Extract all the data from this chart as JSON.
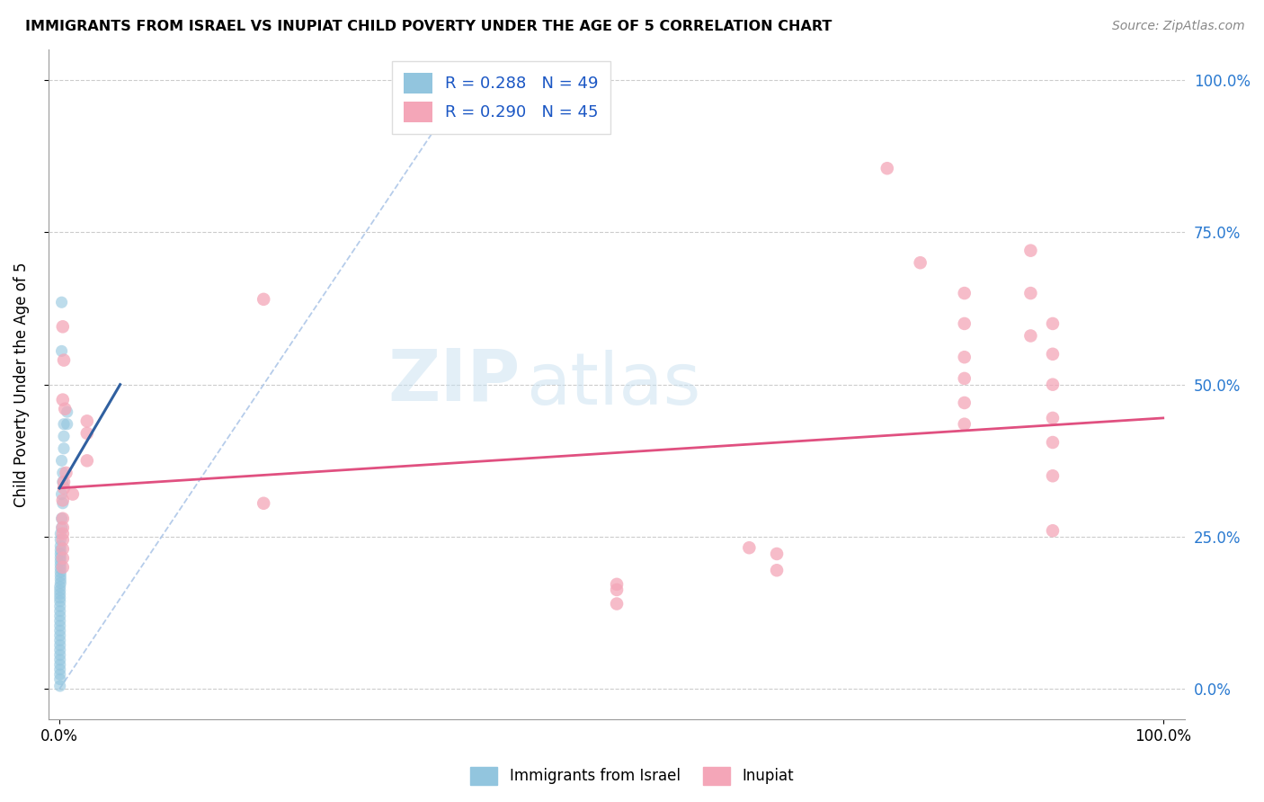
{
  "title": "IMMIGRANTS FROM ISRAEL VS INUPIAT CHILD POVERTY UNDER THE AGE OF 5 CORRELATION CHART",
  "source": "Source: ZipAtlas.com",
  "ylabel": "Child Poverty Under the Age of 5",
  "xlim": [
    -0.01,
    1.02
  ],
  "ylim": [
    -0.05,
    1.05
  ],
  "xtick_positions": [
    0.0,
    1.0
  ],
  "xtick_labels": [
    "0.0%",
    "100.0%"
  ],
  "ytick_positions": [
    0.0,
    0.25,
    0.5,
    0.75,
    1.0
  ],
  "ytick_labels": [
    "0.0%",
    "25.0%",
    "50.0%",
    "75.0%",
    "100.0%"
  ],
  "legend_r1": "R = 0.288",
  "legend_n1": "N = 49",
  "legend_r2": "R = 0.290",
  "legend_n2": "N = 45",
  "legend_label1": "Immigrants from Israel",
  "legend_label2": "Inupiat",
  "color_blue": "#92c5de",
  "color_pink": "#f4a6b8",
  "color_line_blue": "#3060a0",
  "color_line_pink": "#e05080",
  "color_diag": "#aec7e8",
  "watermark_zip": "ZIP",
  "watermark_atlas": "atlas",
  "blue_points": [
    [
      0.002,
      0.635
    ],
    [
      0.002,
      0.555
    ],
    [
      0.007,
      0.455
    ],
    [
      0.007,
      0.435
    ],
    [
      0.004,
      0.435
    ],
    [
      0.004,
      0.415
    ],
    [
      0.004,
      0.395
    ],
    [
      0.002,
      0.375
    ],
    [
      0.003,
      0.355
    ],
    [
      0.003,
      0.34
    ],
    [
      0.002,
      0.32
    ],
    [
      0.003,
      0.305
    ],
    [
      0.002,
      0.28
    ],
    [
      0.002,
      0.265
    ],
    [
      0.001,
      0.255
    ],
    [
      0.001,
      0.245
    ],
    [
      0.001,
      0.235
    ],
    [
      0.001,
      0.228
    ],
    [
      0.001,
      0.222
    ],
    [
      0.001,
      0.216
    ],
    [
      0.001,
      0.21
    ],
    [
      0.001,
      0.204
    ],
    [
      0.001,
      0.198
    ],
    [
      0.001,
      0.192
    ],
    [
      0.001,
      0.186
    ],
    [
      0.001,
      0.18
    ],
    [
      0.001,
      0.174
    ],
    [
      0.0005,
      0.168
    ],
    [
      0.0005,
      0.162
    ],
    [
      0.0005,
      0.156
    ],
    [
      0.0005,
      0.15
    ],
    [
      0.0005,
      0.144
    ],
    [
      0.0005,
      0.136
    ],
    [
      0.0005,
      0.128
    ],
    [
      0.0005,
      0.12
    ],
    [
      0.0005,
      0.112
    ],
    [
      0.0005,
      0.104
    ],
    [
      0.0005,
      0.096
    ],
    [
      0.0005,
      0.088
    ],
    [
      0.0005,
      0.08
    ],
    [
      0.0005,
      0.072
    ],
    [
      0.0005,
      0.064
    ],
    [
      0.0005,
      0.056
    ],
    [
      0.0005,
      0.048
    ],
    [
      0.0005,
      0.04
    ],
    [
      0.0005,
      0.032
    ],
    [
      0.0005,
      0.024
    ],
    [
      0.0005,
      0.016
    ],
    [
      0.0005,
      0.005
    ]
  ],
  "pink_points": [
    [
      0.003,
      0.595
    ],
    [
      0.004,
      0.54
    ],
    [
      0.003,
      0.475
    ],
    [
      0.005,
      0.46
    ],
    [
      0.025,
      0.44
    ],
    [
      0.025,
      0.42
    ],
    [
      0.185,
      0.64
    ],
    [
      0.025,
      0.375
    ],
    [
      0.006,
      0.355
    ],
    [
      0.004,
      0.34
    ],
    [
      0.004,
      0.33
    ],
    [
      0.012,
      0.32
    ],
    [
      0.003,
      0.31
    ],
    [
      0.185,
      0.305
    ],
    [
      0.003,
      0.28
    ],
    [
      0.003,
      0.265
    ],
    [
      0.003,
      0.255
    ],
    [
      0.003,
      0.245
    ],
    [
      0.003,
      0.23
    ],
    [
      0.003,
      0.215
    ],
    [
      0.003,
      0.2
    ],
    [
      0.75,
      0.855
    ],
    [
      0.78,
      0.7
    ],
    [
      0.82,
      0.65
    ],
    [
      0.82,
      0.6
    ],
    [
      0.82,
      0.545
    ],
    [
      0.82,
      0.51
    ],
    [
      0.82,
      0.47
    ],
    [
      0.82,
      0.435
    ],
    [
      0.88,
      0.72
    ],
    [
      0.88,
      0.65
    ],
    [
      0.88,
      0.58
    ],
    [
      0.9,
      0.6
    ],
    [
      0.9,
      0.55
    ],
    [
      0.9,
      0.5
    ],
    [
      0.9,
      0.445
    ],
    [
      0.9,
      0.405
    ],
    [
      0.9,
      0.35
    ],
    [
      0.9,
      0.26
    ],
    [
      0.625,
      0.232
    ],
    [
      0.65,
      0.222
    ],
    [
      0.65,
      0.195
    ],
    [
      0.505,
      0.172
    ],
    [
      0.505,
      0.163
    ],
    [
      0.505,
      0.14
    ]
  ],
  "blue_line_x": [
    0.0,
    0.055
  ],
  "blue_line_y": [
    0.33,
    0.5
  ],
  "pink_line_x": [
    0.0,
    1.0
  ],
  "pink_line_y": [
    0.33,
    0.445
  ],
  "diag_line_x": [
    0.0,
    0.37
  ],
  "diag_line_y": [
    0.0,
    1.0
  ]
}
